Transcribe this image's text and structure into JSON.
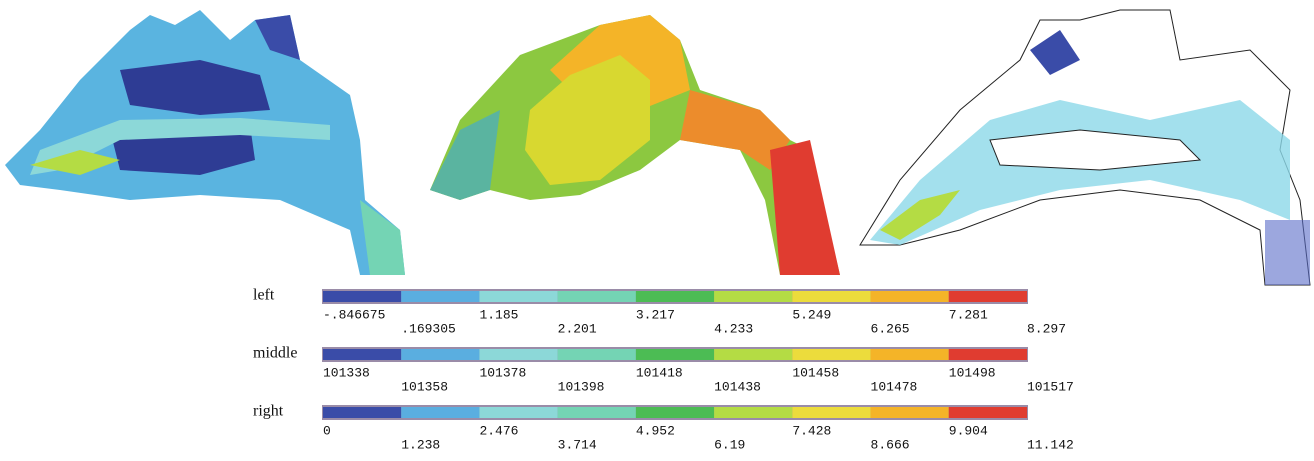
{
  "colors": [
    "#3a4ca8",
    "#5aaee0",
    "#8cd8d8",
    "#74d4b4",
    "#4cbc54",
    "#b4dc44",
    "#ecdc3c",
    "#f4b428",
    "#e03c30"
  ],
  "legends": [
    {
      "label": "left",
      "ticks": [
        "-.846675",
        ".169305",
        "1.185",
        "2.201",
        "3.217",
        "4.233",
        "5.249",
        "6.265",
        "7.281",
        "8.297"
      ]
    },
    {
      "label": "middle",
      "ticks": [
        "101338",
        "101358",
        "101378",
        "101398",
        "101418",
        "101438",
        "101458",
        "101478",
        "101498",
        "101517"
      ]
    },
    {
      "label": "right",
      "ticks": [
        "0",
        "1.238",
        "2.476",
        "3.714",
        "4.952",
        "6.19",
        "7.428",
        "8.666",
        "9.904",
        "11.142"
      ]
    }
  ]
}
